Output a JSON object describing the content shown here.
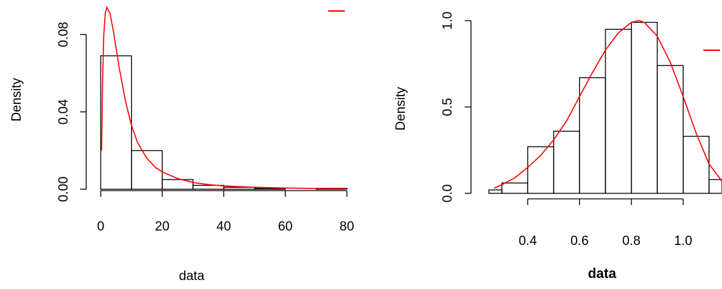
{
  "charts": [
    {
      "xlabel": "data",
      "ylabel": "Density",
      "legend_sample_color": "#ff0000"
    },
    {
      "xlabel": "data",
      "ylabel": "Density",
      "legend_sample_color": "#ff0000"
    }
  ],
  "chart_data": [
    {
      "type": "bar",
      "subtype": "histogram with density curve",
      "title": "",
      "xlabel": "data",
      "ylabel": "Density",
      "xlim": [
        0,
        80
      ],
      "ylim": [
        0,
        0.095
      ],
      "x_ticks": [
        "0",
        "20",
        "40",
        "60",
        "80"
      ],
      "y_ticks": [
        "0.00",
        "0.04",
        "0.08"
      ],
      "bins": [
        {
          "x0": 0,
          "x1": 10,
          "density": 0.069
        },
        {
          "x0": 10,
          "x1": 20,
          "density": 0.02
        },
        {
          "x0": 20,
          "x1": 30,
          "density": 0.005
        },
        {
          "x0": 30,
          "x1": 40,
          "density": 0.002
        },
        {
          "x0": 40,
          "x1": 50,
          "density": 0.001
        },
        {
          "x0": 50,
          "x1": 60,
          "density": 0.0005
        },
        {
          "x0": 60,
          "x1": 70,
          "density": 0.0
        },
        {
          "x0": 70,
          "x1": 80,
          "density": 0.0005
        }
      ],
      "density_curve": {
        "color": "#ff0000",
        "x": [
          0.3,
          0.6,
          1,
          1.5,
          2,
          3,
          4,
          5,
          6,
          8,
          10,
          12,
          15,
          18,
          20,
          25,
          30,
          35,
          40,
          50,
          60,
          70,
          80
        ],
        "y": [
          0.02,
          0.055,
          0.08,
          0.091,
          0.094,
          0.091,
          0.083,
          0.073,
          0.063,
          0.046,
          0.033,
          0.024,
          0.016,
          0.011,
          0.009,
          0.0055,
          0.0035,
          0.0024,
          0.0017,
          0.001,
          0.0006,
          0.0004,
          0.0003
        ]
      },
      "legend": {
        "placement": "top-right",
        "entries": [
          {
            "color": "#ff0000",
            "label": ""
          }
        ]
      },
      "grid": false
    },
    {
      "type": "bar",
      "subtype": "histogram with density curve",
      "title": "",
      "xlabel": "data",
      "ylabel": "Density",
      "xlim": [
        0.25,
        1.15
      ],
      "ylim": [
        0,
        1.0
      ],
      "x_ticks": [
        "0.4",
        "0.6",
        "0.8",
        "1.0"
      ],
      "y_ticks": [
        "0.0",
        "0.5",
        "1.0"
      ],
      "bins": [
        {
          "x0": 0.25,
          "x1": 0.3,
          "density": 0.02
        },
        {
          "x0": 0.3,
          "x1": 0.4,
          "density": 0.06
        },
        {
          "x0": 0.4,
          "x1": 0.5,
          "density": 0.27
        },
        {
          "x0": 0.5,
          "x1": 0.6,
          "density": 0.36
        },
        {
          "x0": 0.6,
          "x1": 0.7,
          "density": 0.67
        },
        {
          "x0": 0.7,
          "x1": 0.8,
          "density": 0.95
        },
        {
          "x0": 0.8,
          "x1": 0.9,
          "density": 0.99
        },
        {
          "x0": 0.9,
          "x1": 1.0,
          "density": 0.74
        },
        {
          "x0": 1.0,
          "x1": 1.1,
          "density": 0.33
        },
        {
          "x0": 1.1,
          "x1": 1.15,
          "density": 0.08
        }
      ],
      "density_curve": {
        "color": "#ff0000",
        "x": [
          0.27,
          0.3,
          0.35,
          0.4,
          0.45,
          0.5,
          0.55,
          0.6,
          0.65,
          0.7,
          0.75,
          0.8,
          0.83,
          0.85,
          0.9,
          0.95,
          1.0,
          1.05,
          1.1,
          1.15
        ],
        "y": [
          0.03,
          0.05,
          0.09,
          0.15,
          0.22,
          0.31,
          0.42,
          0.56,
          0.7,
          0.83,
          0.93,
          0.99,
          1.0,
          0.99,
          0.91,
          0.76,
          0.56,
          0.35,
          0.17,
          0.07
        ]
      },
      "legend": {
        "placement": "top-right",
        "entries": [
          {
            "color": "#ff0000",
            "label": ""
          }
        ]
      },
      "grid": false
    }
  ]
}
